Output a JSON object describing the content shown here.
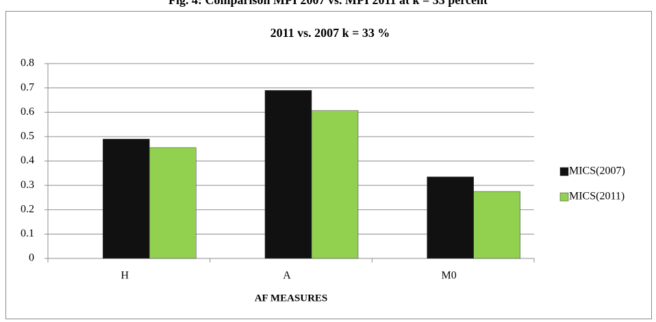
{
  "caption": "Fig. 4: Comparison MPI 2007 vs. MPI 2011 at k = 33 percent",
  "chart_data": {
    "type": "bar",
    "title": "2011 vs. 2007 k = 33 %",
    "x_label": "AF MEASURES",
    "categories": [
      "H",
      "A",
      "M0"
    ],
    "series": [
      {
        "name": "MICS(2007)",
        "color": "#111111",
        "values": [
          0.49,
          0.69,
          0.335
        ]
      },
      {
        "name": "MICS(2011)",
        "color": "#92d050",
        "values": [
          0.455,
          0.607,
          0.275
        ]
      }
    ],
    "ylim": [
      0,
      0.8
    ],
    "yticks": [
      0,
      0.1,
      0.2,
      0.3,
      0.4,
      0.5,
      0.6,
      0.7,
      0.8
    ],
    "grid": true,
    "legend": "right"
  }
}
